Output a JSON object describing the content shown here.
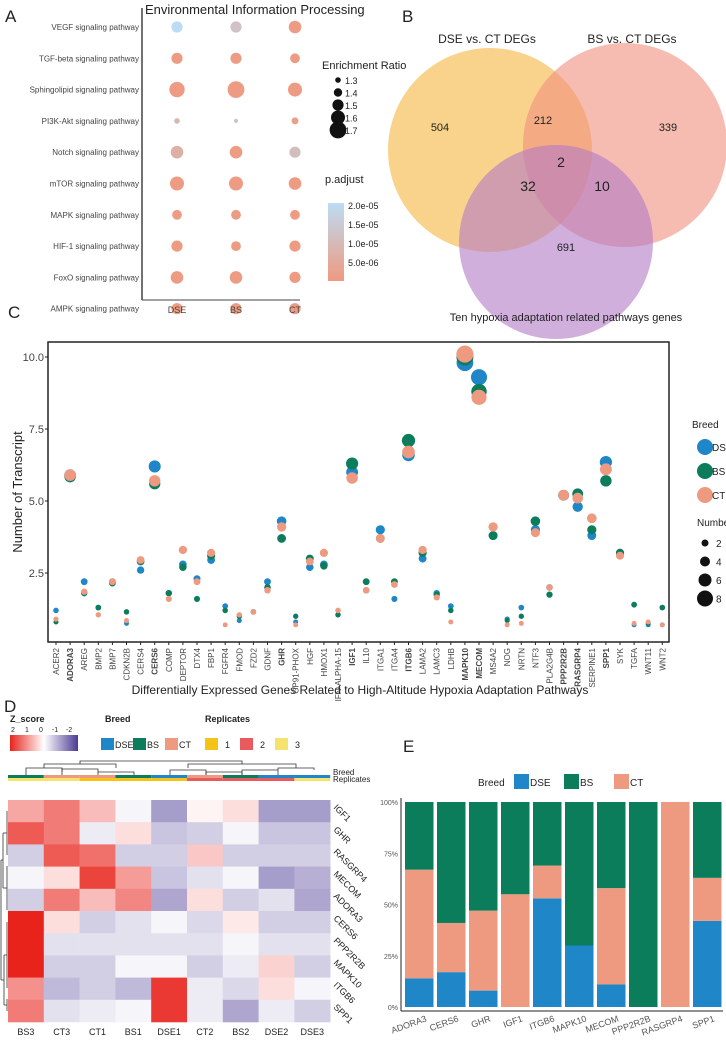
{
  "colors": {
    "DSE": "#1f86c8",
    "BS": "#0b7d5b",
    "CT": "#ee9a80",
    "venn_dse": "#f7c15a",
    "venn_bs": "#f0907e",
    "venn_ten": "#b27ac6",
    "padj_low": "#ee9a80",
    "padj_high": "#bcdcf4",
    "z_high": "#e8231b",
    "z_mid": "#ffffff",
    "z_low": "#4b3a94",
    "rep1": "#f5c316",
    "rep2": "#e95a5f",
    "rep3": "#f6e36e"
  },
  "chart_data": [
    {
      "panel": "A",
      "type": "scatter",
      "title": "Environmental Information Processing",
      "categories_x": [
        "DSE",
        "BS",
        "CT"
      ],
      "categories_y": [
        "VEGF signaling pathway",
        "TGF-beta signaling pathway",
        "Sphingolipid signaling pathway",
        "PI3K-Akt signaling pathway",
        "Notch signaling pathway",
        "mTOR signaling pathway",
        "MAPK signaling pathway",
        "HIF-1 signaling pathway",
        "FoxO signaling pathway",
        "AMPK signaling pathway"
      ],
      "enrichment_ratio": [
        [
          1.5,
          1.5,
          1.55
        ],
        [
          1.5,
          1.5,
          1.45
        ],
        [
          1.65,
          1.7,
          1.6
        ],
        [
          1.3,
          1.25,
          1.35
        ],
        [
          1.55,
          1.55,
          1.5
        ],
        [
          1.6,
          1.6,
          1.55
        ],
        [
          1.45,
          1.45,
          1.45
        ],
        [
          1.5,
          1.45,
          1.5
        ],
        [
          1.55,
          1.55,
          1.5
        ],
        [
          1.5,
          1.5,
          1.5
        ]
      ],
      "p_adjust": [
        [
          2e-05,
          1.3e-05,
          3e-06
        ],
        [
          3e-06,
          3e-06,
          3e-06
        ],
        [
          3e-06,
          3e-06,
          3e-06
        ],
        [
          1e-05,
          1.3e-05,
          4e-06
        ],
        [
          8e-06,
          3e-06,
          1.2e-05
        ],
        [
          3e-06,
          3e-06,
          3e-06
        ],
        [
          3e-06,
          3e-06,
          3e-06
        ],
        [
          3e-06,
          3e-06,
          3e-06
        ],
        [
          3e-06,
          3e-06,
          3e-06
        ],
        [
          3e-06,
          3e-06,
          3e-06
        ]
      ],
      "size_legend": {
        "title": "Enrichment Ratio",
        "values": [
          "1.3",
          "1.4",
          "1.5",
          "1.6",
          "1.7"
        ]
      },
      "color_legend": {
        "title": "p.adjust",
        "ticks": [
          "2.0e-05",
          "1.5e-05",
          "1.0e-05",
          "5.0e-06"
        ],
        "range": [
          2.5e-06,
          2e-05
        ]
      }
    },
    {
      "panel": "B",
      "type": "venn",
      "sets": [
        "DSE vs. CT DEGs",
        "BS vs. CT DEGs",
        "Ten hypoxia adaptation related pathways genes"
      ],
      "regions": {
        "dse_only": "504",
        "dse_bs": "212",
        "bs_only": "339",
        "all": "2",
        "dse_ten": "32",
        "bs_ten": "10",
        "ten_only": "691"
      }
    },
    {
      "panel": "C",
      "type": "scatter",
      "xlabel": "Differentially Expressed Genes Related to High-Altitude Hypoxia Adaptation Pathways",
      "ylabel": "Number of Transcript",
      "yticks": [
        "2.5",
        "5.0",
        "7.5",
        "10.0"
      ],
      "ylim": [
        0.1,
        10.5
      ],
      "genes": [
        "ACER2",
        "ADORA3",
        "AREG",
        "BMP2",
        "BMP7",
        "CDKN2B",
        "CERS4",
        "CERS6",
        "COMP",
        "DEPTOR",
        "DTX4",
        "FBP1",
        "FGFR4",
        "FMOD",
        "FZD2",
        "GDNF",
        "GHR",
        "GP91-PHOX",
        "HGF",
        "HMOX1",
        "IFN-ALPHA-15",
        "IGF1",
        "IL10",
        "ITGA1",
        "ITGA4",
        "ITGB6",
        "LAMA2",
        "LAMC3",
        "LDHB",
        "MAPK10",
        "MECOM",
        "MS4A2",
        "NOG",
        "NRTN",
        "NTF3",
        "PLA2G4B",
        "PPP2R2B",
        "RASGRP4",
        "SERPINE1",
        "SPP1",
        "SYK",
        "TGFA",
        "WNT11",
        "WNT2"
      ],
      "bold_genes": [
        "ADORA3",
        "CERS6",
        "GHR",
        "IGF1",
        "ITGB6",
        "MAPK10",
        "MECOM",
        "PPP2R2B",
        "RASGRP4",
        "SPP1"
      ],
      "series": [
        {
          "name": "DSE",
          "values": [
            1.2,
            5.9,
            2.2,
            1.3,
            2.2,
            0.75,
            2.6,
            6.2,
            1.8,
            2.8,
            2.3,
            2.95,
            1.35,
            0.85,
            1.15,
            2.2,
            4.3,
            0.8,
            2.7,
            2.8,
            1.05,
            6.0,
            1.9,
            4.0,
            1.6,
            6.6,
            3.0,
            1.8,
            1.35,
            9.8,
            9.3,
            3.8,
            0.9,
            1.3,
            4.0,
            2.0,
            5.2,
            4.8,
            3.8,
            6.35,
            3.2,
            0.7,
            0.7,
            0.7
          ]
        },
        {
          "name": "BS",
          "values": [
            0.8,
            5.85,
            1.8,
            1.3,
            2.15,
            1.15,
            2.9,
            5.6,
            1.8,
            2.7,
            1.6,
            3.1,
            1.2,
            1.0,
            1.15,
            2.0,
            3.7,
            1.0,
            3.0,
            2.75,
            1.05,
            6.3,
            2.2,
            3.7,
            2.2,
            7.1,
            3.2,
            1.75,
            1.2,
            10.0,
            8.8,
            3.8,
            0.85,
            1.0,
            4.3,
            1.75,
            5.2,
            5.25,
            4.0,
            5.7,
            3.2,
            1.4,
            0.75,
            1.3
          ]
        },
        {
          "name": "CT",
          "values": [
            0.9,
            5.9,
            1.85,
            1.05,
            2.2,
            0.85,
            2.95,
            5.7,
            1.6,
            3.3,
            2.2,
            3.2,
            0.7,
            1.05,
            1.15,
            1.9,
            4.1,
            0.7,
            2.9,
            3.2,
            1.2,
            5.8,
            1.9,
            3.7,
            2.1,
            6.7,
            3.3,
            1.65,
            0.8,
            10.1,
            8.6,
            4.1,
            0.7,
            0.75,
            3.9,
            2.0,
            5.2,
            5.1,
            4.4,
            6.1,
            3.1,
            0.75,
            0.8,
            0.7
          ]
        }
      ],
      "legend": {
        "breed_title": "Breed",
        "breeds": [
          "DSE",
          "BS",
          "CT"
        ],
        "size_title": "Numbers",
        "sizes": [
          "2",
          "4",
          "6",
          "8"
        ]
      }
    },
    {
      "panel": "D",
      "type": "heatmap",
      "columns": [
        "BS3",
        "CT3",
        "CT1",
        "BS1",
        "DSE1",
        "CT2",
        "BS2",
        "DSE2",
        "DSE3"
      ],
      "column_breed": [
        "BS",
        "CT",
        "CT",
        "BS",
        "DSE",
        "CT",
        "BS",
        "DSE",
        "DSE"
      ],
      "column_replicate": [
        "3",
        "3",
        "1",
        "1",
        "1",
        "2",
        "2",
        "2",
        "3"
      ],
      "rows": [
        "IGF1",
        "GHR",
        "RASGRP4",
        "MECOM",
        "ADORA3",
        "CERS6",
        "PPP2R2B",
        "MAPK10",
        "ITGB6",
        "SPP1"
      ],
      "z_scores": [
        [
          0.8,
          1.2,
          0.6,
          -0.1,
          -1.0,
          0.1,
          0.3,
          -1.0,
          -1.0
        ],
        [
          1.5,
          1.2,
          -0.2,
          0.3,
          -0.6,
          -0.5,
          -0.1,
          -0.6,
          -0.6
        ],
        [
          -0.5,
          1.5,
          1.3,
          -0.5,
          -0.5,
          0.5,
          -0.5,
          -0.5,
          -0.5
        ],
        [
          -0.1,
          0.3,
          1.7,
          0.9,
          -0.6,
          -0.3,
          -0.1,
          -1.0,
          -0.8
        ],
        [
          -0.5,
          1.2,
          0.6,
          1.1,
          -0.9,
          0.3,
          -0.5,
          -0.3,
          -0.9
        ],
        [
          2.2,
          0.3,
          -0.5,
          -0.3,
          -0.1,
          -0.4,
          0.2,
          -0.5,
          -0.5
        ],
        [
          2.4,
          -0.3,
          -0.3,
          -0.3,
          -0.3,
          -0.3,
          -0.1,
          -0.3,
          -0.3
        ],
        [
          2.2,
          -0.5,
          -0.5,
          -0.1,
          -0.1,
          -0.5,
          -0.2,
          0.4,
          -0.5
        ],
        [
          1.0,
          -0.7,
          -0.5,
          -0.7,
          1.8,
          -0.2,
          -0.4,
          0.3,
          -0.1
        ],
        [
          1.2,
          -0.3,
          -0.2,
          -0.1,
          1.8,
          -0.2,
          -0.9,
          -0.2,
          -0.5
        ]
      ],
      "legend": {
        "z_title": "Z_score",
        "z_ticks": [
          "2",
          "1",
          "0",
          "-1",
          "-2"
        ],
        "breed_title": "Breed",
        "breeds": [
          "DSE",
          "BS",
          "CT"
        ],
        "rep_title": "Replicates",
        "replicates": [
          "1",
          "2",
          "3"
        ],
        "strip_labels": [
          "Breed",
          "Replicates"
        ]
      }
    },
    {
      "panel": "E",
      "type": "bar",
      "stacked": true,
      "percent": true,
      "categories": [
        "ADORA3",
        "CERS6",
        "GHR",
        "IGF1",
        "ITGB6",
        "MAPK10",
        "MECOM",
        "PPP2R2B",
        "RASGRP4",
        "SPP1"
      ],
      "series": [
        {
          "name": "DSE",
          "values": [
            14,
            17,
            8,
            0,
            53,
            30,
            11,
            0,
            0,
            42
          ]
        },
        {
          "name": "CT",
          "values": [
            53,
            24,
            39,
            55,
            16,
            0,
            47,
            0,
            100,
            21
          ]
        },
        {
          "name": "BS",
          "values": [
            33,
            59,
            53,
            45,
            31,
            70,
            42,
            100,
            0,
            37
          ]
        }
      ],
      "yticks": [
        "0%",
        "25%",
        "50%",
        "75%",
        "100%"
      ],
      "ylim": [
        0,
        100
      ],
      "legend": {
        "title": "Breed",
        "entries": [
          "DSE",
          "BS",
          "CT"
        ]
      }
    }
  ],
  "panel_letters": [
    "A",
    "B",
    "C",
    "D",
    "E"
  ]
}
